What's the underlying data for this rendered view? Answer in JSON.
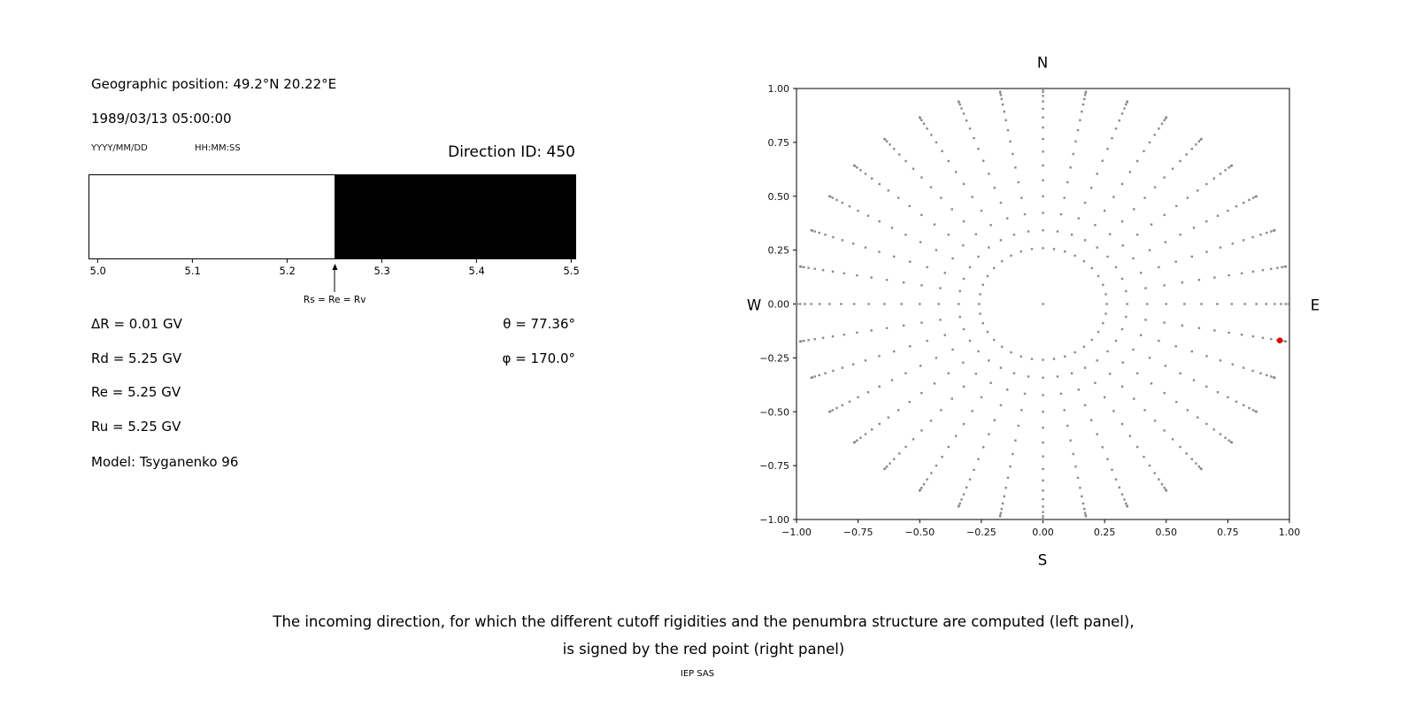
{
  "left_panel": {
    "geographic_position": "Geographic position: 49.2°N 20.22°E",
    "datetime": "1989/03/13 05:00:00",
    "date_format_label": "YYYY/MM/DD",
    "time_format_label": "HH:MM:SS",
    "direction_id": "Direction ID: 450",
    "params": [
      "ΔR = 0.01 GV",
      "Rd = 5.25 GV",
      "Re = 5.25 GV",
      "Ru = 5.25 GV",
      "Model: Tsyganenko 96"
    ],
    "theta": "θ = 77.36°",
    "phi": "φ = 170.0°"
  },
  "caption": {
    "line1": "The incoming direction, for which the different cutoff rigidities and the penumbra structure are computed (left panel),",
    "line2": "is signed by the red point (right panel)"
  },
  "footer_text": "IEP SAS",
  "chart_data": [
    {
      "type": "bar",
      "x_range": [
        4.99,
        5.505
      ],
      "x_ticks": {
        "values": [
          5.0,
          5.1,
          5.2,
          5.3,
          5.4,
          5.5
        ],
        "labels": [
          "5.0",
          "5.1",
          "5.2",
          "5.3",
          "5.4",
          "5.5"
        ]
      },
      "segments": [
        {
          "from": 4.99,
          "to": 5.25,
          "color": "#ffffff"
        },
        {
          "from": 5.25,
          "to": 5.505,
          "color": "#000000"
        }
      ],
      "marker_x": 5.25,
      "marker_label": "Rs = Re = Rv"
    },
    {
      "type": "scatter",
      "xlim": [
        -1.0,
        1.0
      ],
      "ylim": [
        -1.0,
        1.0
      ],
      "ticks": {
        "values": [
          -1.0,
          -0.75,
          -0.5,
          -0.25,
          0.0,
          0.25,
          0.5,
          0.75,
          1.0
        ],
        "labels": [
          "−1.00",
          "−0.75",
          "−0.50",
          "−0.25",
          "0.00",
          "0.25",
          "0.50",
          "0.75",
          "1.00"
        ]
      },
      "compass": {
        "top": "N",
        "bottom": "S",
        "left": "W",
        "right": "E"
      },
      "grid": "off",
      "point_color": "#8a8a8a",
      "direction_grid": {
        "azimuth_start_deg": 0,
        "azimuth_step_deg": 10,
        "azimuth_count": 36,
        "radii": [
          0.259,
          0.342,
          0.423,
          0.5,
          0.574,
          0.643,
          0.707,
          0.766,
          0.819,
          0.866,
          0.906,
          0.94,
          0.966,
          0.985,
          0.996,
          1.0
        ],
        "center_point": true
      },
      "selected_point": {
        "x": 0.961,
        "y": -0.169,
        "color": "#dd0000"
      }
    }
  ]
}
